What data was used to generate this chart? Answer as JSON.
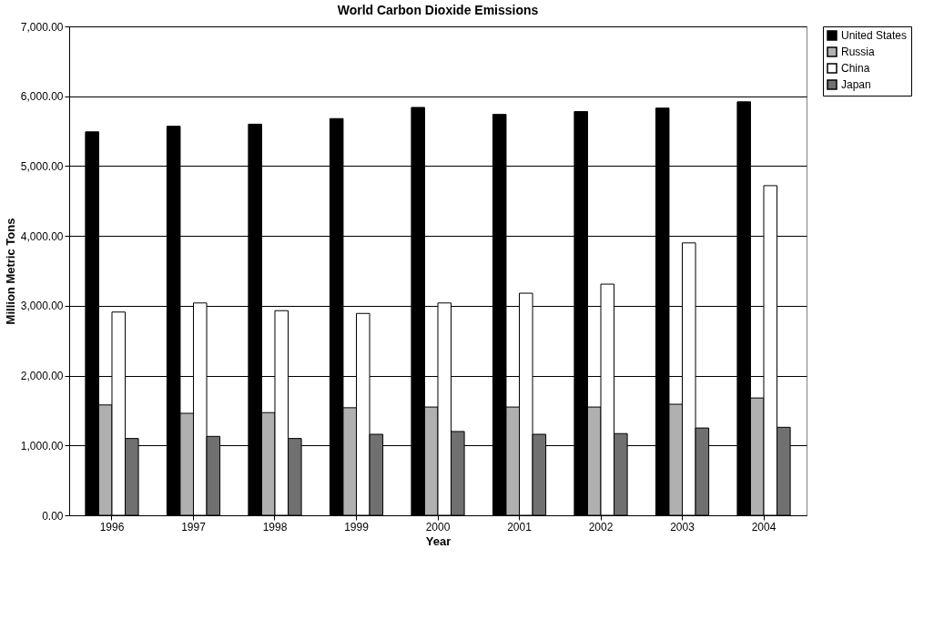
{
  "chart_data": {
    "type": "bar",
    "title": "World Carbon Dioxide Emissions",
    "xlabel": "Year",
    "ylabel": "Million Metric Tons",
    "categories": [
      "1996",
      "1997",
      "1998",
      "1999",
      "2000",
      "2001",
      "2002",
      "2003",
      "2004"
    ],
    "series": [
      {
        "name": "United States",
        "color": "#000000",
        "values": [
          5490,
          5570,
          5600,
          5680,
          5840,
          5740,
          5780,
          5830,
          5920
        ]
      },
      {
        "name": "Russia",
        "color": "#b0b0b0",
        "values": [
          1580,
          1460,
          1470,
          1540,
          1550,
          1550,
          1550,
          1590,
          1680
        ]
      },
      {
        "name": "China",
        "color": "#ffffff",
        "values": [
          2910,
          3040,
          2930,
          2890,
          3040,
          3180,
          3310,
          3900,
          4720
        ]
      },
      {
        "name": "Japan",
        "color": "#707070",
        "values": [
          1100,
          1130,
          1100,
          1160,
          1200,
          1160,
          1170,
          1250,
          1260
        ]
      }
    ],
    "ylim": [
      0,
      7000
    ],
    "yticks": [
      {
        "value": 0,
        "label": "0.00"
      },
      {
        "value": 1000,
        "label": "1,000.00"
      },
      {
        "value": 2000,
        "label": "2,000.00"
      },
      {
        "value": 3000,
        "label": "3,000.00"
      },
      {
        "value": 4000,
        "label": "4,000.00"
      },
      {
        "value": 5000,
        "label": "5,000.00"
      },
      {
        "value": 6000,
        "label": "6,000.00"
      },
      {
        "value": 7000,
        "label": "7,000.00"
      }
    ],
    "grid": "y",
    "legend": "right"
  }
}
